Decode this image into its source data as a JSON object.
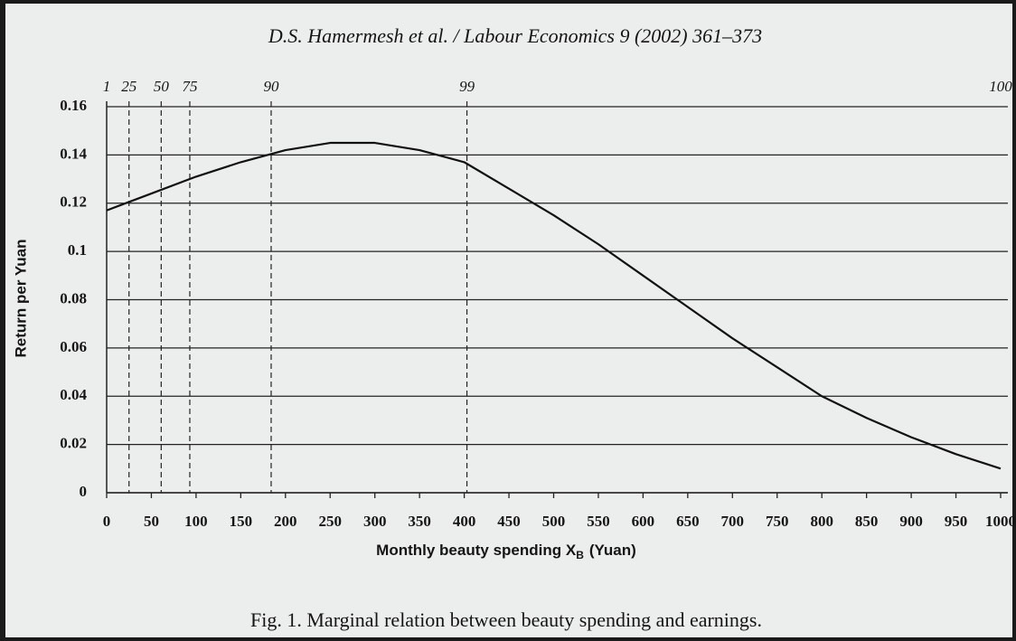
{
  "header": "D.S. Hamermesh et al. / Labour Economics 9 (2002) 361–373",
  "caption": "Fig. 1. Marginal relation between beauty spending and earnings.",
  "chart_data": {
    "type": "line",
    "xlabel": {
      "text": "Monthly beauty spending X",
      "sub": "B",
      "unit": "(Yuan)"
    },
    "ylabel": "Return per Yuan",
    "x": [
      0,
      50,
      100,
      150,
      200,
      250,
      300,
      350,
      400,
      450,
      500,
      550,
      600,
      650,
      700,
      750,
      800,
      850,
      900,
      950,
      1000
    ],
    "series": [
      {
        "color": "#111111",
        "values": [
          0.117,
          0.124,
          0.131,
          0.137,
          0.142,
          0.145,
          0.145,
          0.142,
          0.137,
          0.126,
          0.115,
          0.103,
          0.09,
          0.077,
          0.064,
          0.052,
          0.04,
          0.031,
          0.023,
          0.016,
          0.01
        ]
      }
    ],
    "xlim": [
      0,
      1000
    ],
    "xticks": [
      0,
      50,
      100,
      150,
      200,
      250,
      300,
      350,
      400,
      450,
      500,
      550,
      600,
      650,
      700,
      750,
      800,
      850,
      900,
      950,
      1000
    ],
    "ylim": [
      0,
      0.16
    ],
    "yticks": [
      0,
      0.02,
      0.04,
      0.06,
      0.08,
      0.1,
      0.12,
      0.14,
      0.16
    ],
    "grid": true,
    "percentiles": [
      {
        "label": "1",
        "x": 0,
        "dashed": false
      },
      {
        "label": "25",
        "x": 25,
        "dashed": true
      },
      {
        "label": "50",
        "x": 61,
        "dashed": true
      },
      {
        "label": "75",
        "x": 93,
        "dashed": true
      },
      {
        "label": "90",
        "x": 184,
        "dashed": true
      },
      {
        "label": "99",
        "x": 403,
        "dashed": true
      },
      {
        "label": "100",
        "x": 1000,
        "dashed": false
      }
    ]
  }
}
